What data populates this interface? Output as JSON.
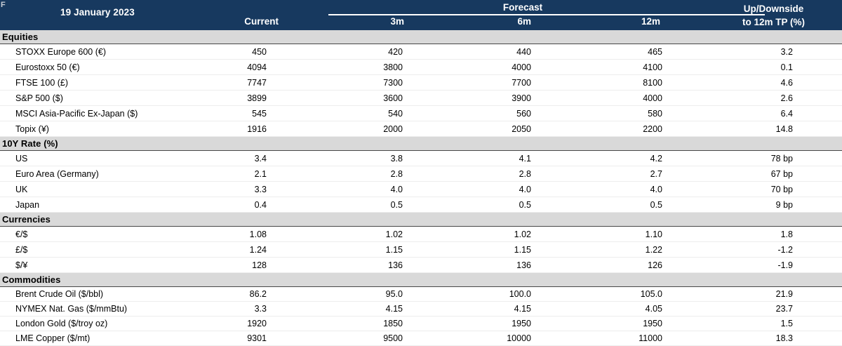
{
  "meta": {
    "corner_label": "F"
  },
  "colors": {
    "header_bg": "#17395F",
    "header_text": "#FFFFFF",
    "section_bg": "#D9D9D9",
    "section_border": "#474747",
    "row_divider": "#EDEDED",
    "body_text": "#000000"
  },
  "header": {
    "date": "19 January 2023",
    "current": "Current",
    "forecast_group": "Forecast",
    "m3": "3m",
    "m6": "6m",
    "m12": "12m",
    "updown_line1": "Up/Downside",
    "updown_line2": "to 12m TP (%)"
  },
  "sections": [
    {
      "title": "Equities",
      "rows": [
        {
          "label": "STOXX Europe 600 (€)",
          "current": "450",
          "m3": "420",
          "m6": "440",
          "m12": "465",
          "updown": "3.2"
        },
        {
          "label": "Eurostoxx 50 (€)",
          "current": "4094",
          "m3": "3800",
          "m6": "4000",
          "m12": "4100",
          "updown": "0.1"
        },
        {
          "label": "FTSE 100 (£)",
          "current": "7747",
          "m3": "7300",
          "m6": "7700",
          "m12": "8100",
          "updown": "4.6"
        },
        {
          "label": "S&P 500 ($)",
          "current": "3899",
          "m3": "3600",
          "m6": "3900",
          "m12": "4000",
          "updown": "2.6"
        },
        {
          "label": "MSCI Asia-Pacific Ex-Japan ($)",
          "current": "545",
          "m3": "540",
          "m6": "560",
          "m12": "580",
          "updown": "6.4"
        },
        {
          "label": "Topix (¥)",
          "current": "1916",
          "m3": "2000",
          "m6": "2050",
          "m12": "2200",
          "updown": "14.8"
        }
      ]
    },
    {
      "title": "10Y Rate (%)",
      "rows": [
        {
          "label": "US",
          "current": "3.4",
          "m3": "3.8",
          "m6": "4.1",
          "m12": "4.2",
          "updown": "78 bp"
        },
        {
          "label": "Euro Area (Germany)",
          "current": "2.1",
          "m3": "2.8",
          "m6": "2.8",
          "m12": "2.7",
          "updown": "67 bp"
        },
        {
          "label": "UK",
          "current": "3.3",
          "m3": "4.0",
          "m6": "4.0",
          "m12": "4.0",
          "updown": "70 bp"
        },
        {
          "label": "Japan",
          "current": "0.4",
          "m3": "0.5",
          "m6": "0.5",
          "m12": "0.5",
          "updown": "9 bp"
        }
      ]
    },
    {
      "title": "Currencies",
      "rows": [
        {
          "label": "€/$",
          "current": "1.08",
          "m3": "1.02",
          "m6": "1.02",
          "m12": "1.10",
          "updown": "1.8"
        },
        {
          "label": "£/$",
          "current": "1.24",
          "m3": "1.15",
          "m6": "1.15",
          "m12": "1.22",
          "updown": "-1.2"
        },
        {
          "label": "$/¥",
          "current": "128",
          "m3": "136",
          "m6": "136",
          "m12": "126",
          "updown": "-1.9"
        }
      ]
    },
    {
      "title": "Commodities",
      "rows": [
        {
          "label": "Brent Crude Oil ($/bbl)",
          "current": "86.2",
          "m3": "95.0",
          "m6": "100.0",
          "m12": "105.0",
          "updown": "21.9"
        },
        {
          "label": "NYMEX Nat. Gas ($/mmBtu)",
          "current": "3.3",
          "m3": "4.15",
          "m6": "4.15",
          "m12": "4.05",
          "updown": "23.7"
        },
        {
          "label": "London Gold ($/troy oz)",
          "current": "1920",
          "m3": "1850",
          "m6": "1950",
          "m12": "1950",
          "updown": "1.5"
        },
        {
          "label": "LME Copper ($/mt)",
          "current": "9301",
          "m3": "9500",
          "m6": "10000",
          "m12": "11000",
          "updown": "18.3"
        }
      ]
    }
  ]
}
